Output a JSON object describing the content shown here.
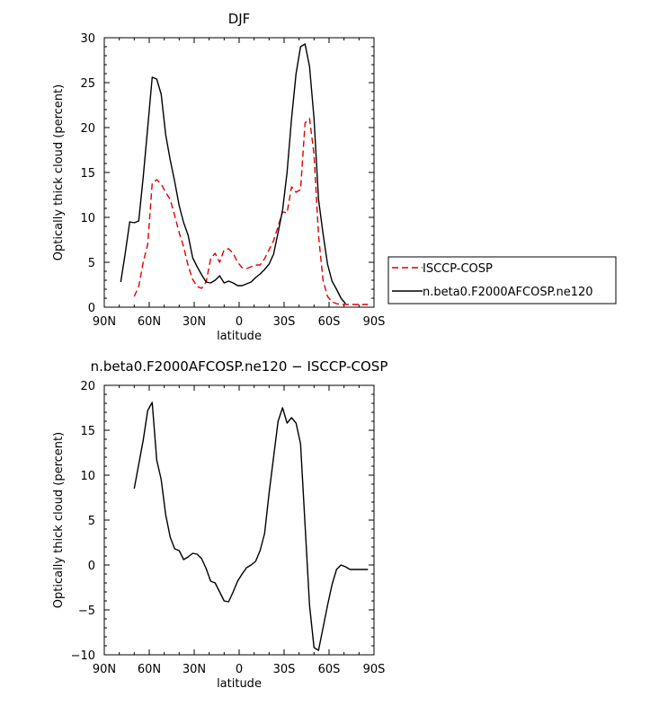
{
  "chart_data": [
    {
      "type": "line",
      "title": "DJF",
      "xlabel": "latitude",
      "ylabel": "Optically thick cloud (percent)",
      "xlim": [
        90,
        -90
      ],
      "ylim": [
        0,
        30
      ],
      "xticks": [
        90,
        60,
        30,
        0,
        -30,
        -60,
        -90
      ],
      "xtick_labels": [
        "90N",
        "60N",
        "30N",
        "0",
        "30S",
        "60S",
        "90S"
      ],
      "yticks": [
        0,
        5,
        10,
        15,
        20,
        25,
        30
      ],
      "ytick_labels": [
        "0",
        "5",
        "10",
        "15",
        "20",
        "25",
        "30"
      ],
      "legend_position": "right",
      "series": [
        {
          "name": "ISCCP-COSP",
          "color": "#dd0000",
          "style": "dashed",
          "x": [
            70,
            67,
            64,
            61,
            58,
            55,
            52,
            49,
            46,
            43,
            40,
            37,
            34,
            31,
            28,
            25,
            22,
            19,
            16,
            13,
            10,
            7,
            4,
            1,
            -2,
            -5,
            -8,
            -11,
            -14,
            -17,
            -20,
            -23,
            -26,
            -29,
            -32,
            -35,
            -38,
            -41,
            -44,
            -47,
            -50,
            -53,
            -56,
            -59,
            -62,
            -65,
            -68,
            -71,
            -74,
            -77,
            -80,
            -83,
            -86
          ],
          "y": [
            1.2,
            2.3,
            5.0,
            7.0,
            13.8,
            14.2,
            13.7,
            12.8,
            12.0,
            10.2,
            8.3,
            6.7,
            4.6,
            3.1,
            2.3,
            2.1,
            2.8,
            5.4,
            6.0,
            5.0,
            6.4,
            6.5,
            6.0,
            5.0,
            4.4,
            4.3,
            4.5,
            4.7,
            4.7,
            5.4,
            6.4,
            7.4,
            9.0,
            10.6,
            10.5,
            13.4,
            12.8,
            13.1,
            20.5,
            21.0,
            17.0,
            8.0,
            3.0,
            1.2,
            0.6,
            0.4,
            0.3,
            0.3,
            0.3,
            0.3,
            0.3,
            0.3,
            0.3
          ]
        },
        {
          "name": "n.beta0.F2000AFCOSP.ne120",
          "color": "#000000",
          "style": "solid",
          "x": [
            79,
            76,
            73,
            70,
            67,
            64,
            61,
            58,
            55,
            52,
            49,
            46,
            43,
            40,
            37,
            34,
            31,
            28,
            25,
            22,
            19,
            16,
            13,
            10,
            7,
            4,
            1,
            -2,
            -5,
            -8,
            -11,
            -14,
            -17,
            -20,
            -23,
            -26,
            -29,
            -32,
            -35,
            -38,
            -41,
            -44,
            -47,
            -50,
            -53,
            -56,
            -59,
            -62,
            -65,
            -68,
            -71
          ],
          "y": [
            2.8,
            6.0,
            9.5,
            9.4,
            9.6,
            14.5,
            20.0,
            25.6,
            25.4,
            23.7,
            19.2,
            16.4,
            14.0,
            11.3,
            9.4,
            8.0,
            5.5,
            4.5,
            3.6,
            2.8,
            2.7,
            3.0,
            3.5,
            2.7,
            2.9,
            2.7,
            2.4,
            2.4,
            2.6,
            2.8,
            3.3,
            3.7,
            4.2,
            4.8,
            5.9,
            8.3,
            10.8,
            15.0,
            21.0,
            26.0,
            29.0,
            29.3,
            26.8,
            21.0,
            12.0,
            8.2,
            4.8,
            2.9,
            2.0,
            1.0,
            0.4
          ]
        }
      ]
    },
    {
      "type": "line",
      "title": "n.beta0.F2000AFCOSP.ne120 − ISCCP-COSP",
      "xlabel": "latitude",
      "ylabel": "Optically thick cloud (percent)",
      "xlim": [
        90,
        -90
      ],
      "ylim": [
        -10,
        20
      ],
      "xticks": [
        90,
        60,
        30,
        0,
        -30,
        -60,
        -90
      ],
      "xtick_labels": [
        "90N",
        "60N",
        "30N",
        "0",
        "30S",
        "60S",
        "90S"
      ],
      "yticks": [
        -10,
        -5,
        0,
        5,
        10,
        15,
        20
      ],
      "ytick_labels": [
        "−10",
        "−5",
        "0",
        "5",
        "10",
        "15",
        "20"
      ],
      "series": [
        {
          "color": "#000000",
          "style": "solid",
          "x": [
            70,
            67,
            64,
            61,
            58,
            55,
            52,
            49,
            46,
            43,
            40,
            37,
            34,
            31,
            28,
            25,
            22,
            19,
            16,
            13,
            10,
            7,
            4,
            1,
            -2,
            -5,
            -8,
            -11,
            -14,
            -17,
            -20,
            -23,
            -26,
            -29,
            -32,
            -35,
            -38,
            -41,
            -44,
            -47,
            -50,
            -53,
            -56,
            -59,
            -62,
            -65,
            -68,
            -71,
            -74,
            -77,
            -80,
            -83,
            -86
          ],
          "y": [
            8.5,
            11.2,
            13.9,
            17.2,
            18.1,
            11.7,
            9.5,
            5.6,
            3.1,
            1.8,
            1.6,
            0.6,
            0.9,
            1.3,
            1.2,
            0.7,
            -0.4,
            -1.8,
            -2.0,
            -3.0,
            -4.0,
            -4.1,
            -3.0,
            -1.8,
            -1.0,
            -0.3,
            0.0,
            0.4,
            1.6,
            3.5,
            8.0,
            12.0,
            16.0,
            17.5,
            15.8,
            16.4,
            15.8,
            13.5,
            4.5,
            -4.5,
            -9.2,
            -9.5,
            -7.0,
            -4.5,
            -2.2,
            -0.5,
            0.0,
            -0.2,
            -0.5,
            -0.5,
            -0.5,
            -0.5,
            -0.5
          ]
        }
      ]
    }
  ]
}
